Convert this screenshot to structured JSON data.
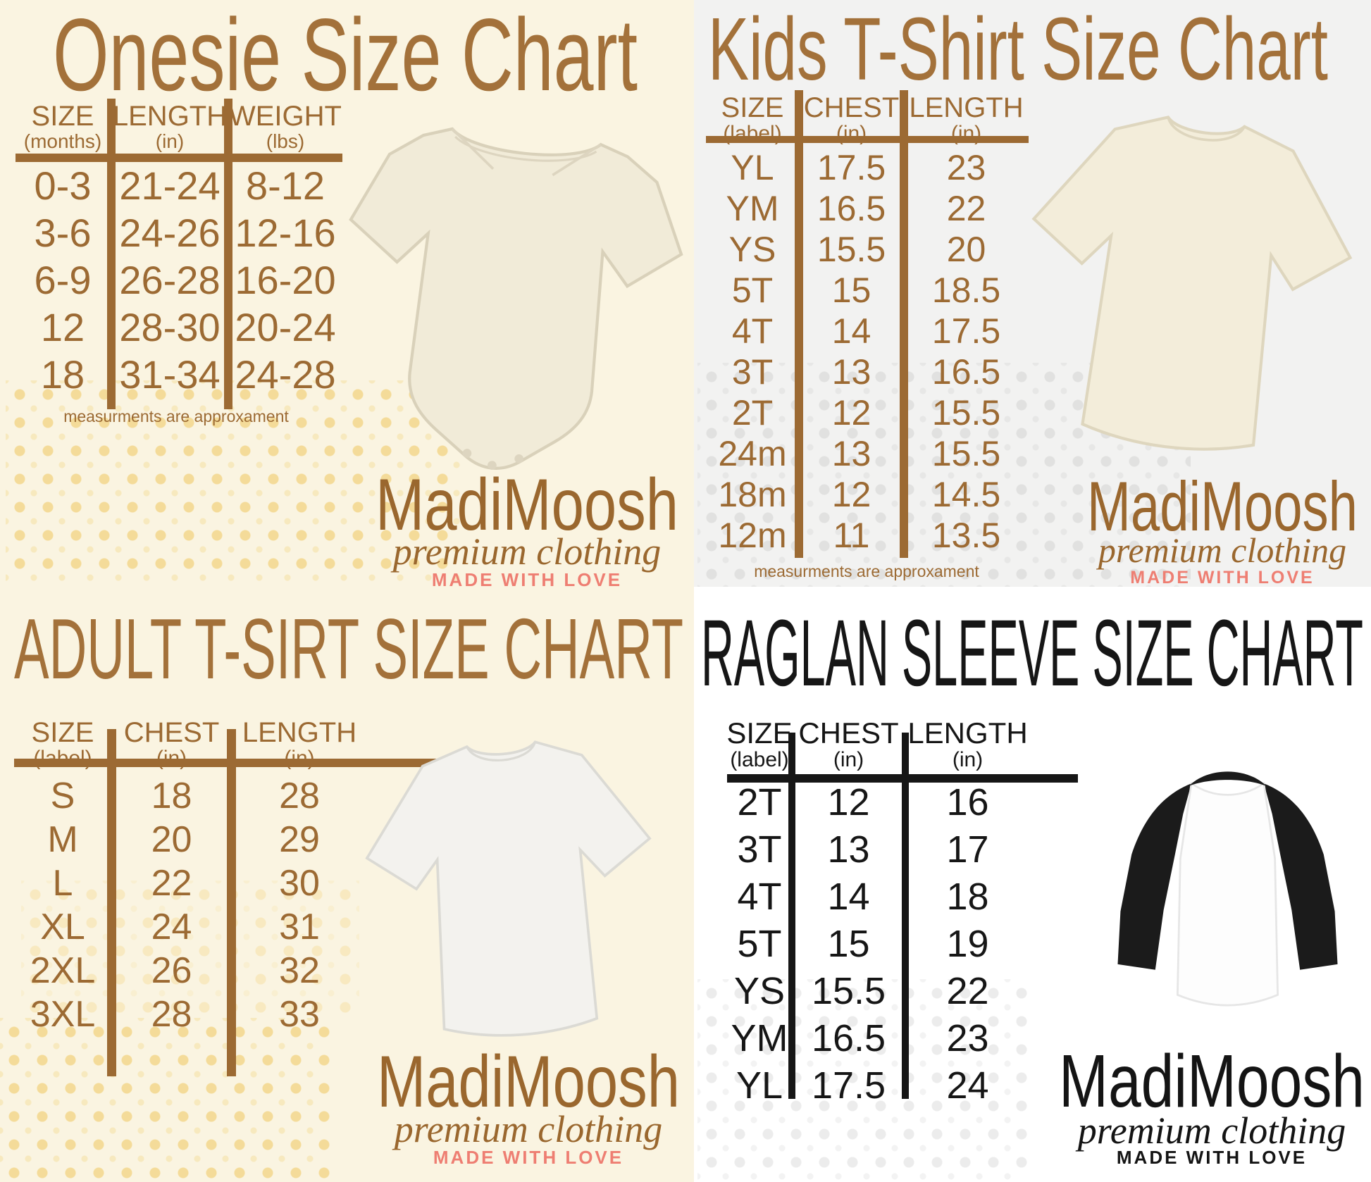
{
  "brand": {
    "name": "MadiMoosh",
    "tagline": "premium clothing",
    "motto": "MADE WITH LOVE"
  },
  "colors": {
    "brown_text": "#9c6a33",
    "brown_title": "#a3713a",
    "black_text": "#161616",
    "coral_motto": "#ee7e72",
    "cream_background": "#faf4e1",
    "gray_background": "#f2f2f1",
    "white_background": "#ffffff",
    "dot_yellow": "#f3d78c",
    "dot_gray": "#e4e4e4",
    "garment_cream": "#f2ecd9",
    "garment_white": "#fdfdfd",
    "garment_black": "#1b1b1b"
  },
  "chart_data": [
    {
      "type": "table",
      "id": "onesie",
      "title": "Onesie Size Chart",
      "columns": [
        {
          "label": "SIZE",
          "unit": "(months)"
        },
        {
          "label": "LENGTH",
          "unit": "(in)"
        },
        {
          "label": "WEIGHT",
          "unit": "(lbs)"
        }
      ],
      "rows": [
        [
          "0-3",
          "21-24",
          "8-12"
        ],
        [
          "3-6",
          "24-26",
          "12-16"
        ],
        [
          "6-9",
          "26-28",
          "16-20"
        ],
        [
          "12",
          "28-30",
          "20-24"
        ],
        [
          "18",
          "31-34",
          "24-28"
        ]
      ],
      "footnote": "measurments are approxament"
    },
    {
      "type": "table",
      "id": "kids-tshirt",
      "title": "Kids T-Shirt Size Chart",
      "columns": [
        {
          "label": "SIZE",
          "unit": "(label)"
        },
        {
          "label": "CHEST",
          "unit": "(in)"
        },
        {
          "label": "LENGTH",
          "unit": "(in)"
        }
      ],
      "rows": [
        [
          "YL",
          "17.5",
          "23"
        ],
        [
          "YM",
          "16.5",
          "22"
        ],
        [
          "YS",
          "15.5",
          "20"
        ],
        [
          "5T",
          "15",
          "18.5"
        ],
        [
          "4T",
          "14",
          "17.5"
        ],
        [
          "3T",
          "13",
          "16.5"
        ],
        [
          "2T",
          "12",
          "15.5"
        ],
        [
          "24m",
          "13",
          "15.5"
        ],
        [
          "18m",
          "12",
          "14.5"
        ],
        [
          "12m",
          "11",
          "13.5"
        ]
      ],
      "footnote": "measurments are approxament"
    },
    {
      "type": "table",
      "id": "adult-tshirt",
      "title": "ADULT T-SIRT SIZE CHART",
      "columns": [
        {
          "label": "SIZE",
          "unit": "(label)"
        },
        {
          "label": "CHEST",
          "unit": "(in)"
        },
        {
          "label": "LENGTH",
          "unit": "(in)"
        }
      ],
      "rows": [
        [
          "S",
          "18",
          "28"
        ],
        [
          "M",
          "20",
          "29"
        ],
        [
          "L",
          "22",
          "30"
        ],
        [
          "XL",
          "24",
          "31"
        ],
        [
          "2XL",
          "26",
          "32"
        ],
        [
          "3XL",
          "28",
          "33"
        ]
      ],
      "footnote": ""
    },
    {
      "type": "table",
      "id": "raglan-sleeve",
      "title": "RAGLAN SLEEVE SIZE CHART",
      "columns": [
        {
          "label": "SIZE",
          "unit": "(label)"
        },
        {
          "label": "CHEST",
          "unit": "(in)"
        },
        {
          "label": "LENGTH",
          "unit": "(in)"
        }
      ],
      "rows": [
        [
          "2T",
          "12",
          "16"
        ],
        [
          "3T",
          "13",
          "17"
        ],
        [
          "4T",
          "14",
          "18"
        ],
        [
          "5T",
          "15",
          "19"
        ],
        [
          "YS",
          "15.5",
          "22"
        ],
        [
          "YM",
          "16.5",
          "23"
        ],
        [
          "YL",
          "17.5",
          "24"
        ]
      ],
      "footnote": ""
    }
  ],
  "images": {
    "onesie": "infant-onesie-photo",
    "kids_tshirt": "kids-tshirt-photo",
    "adult_tshirt": "adult-tshirt-photo",
    "raglan": "raglan-shirt-photo"
  }
}
